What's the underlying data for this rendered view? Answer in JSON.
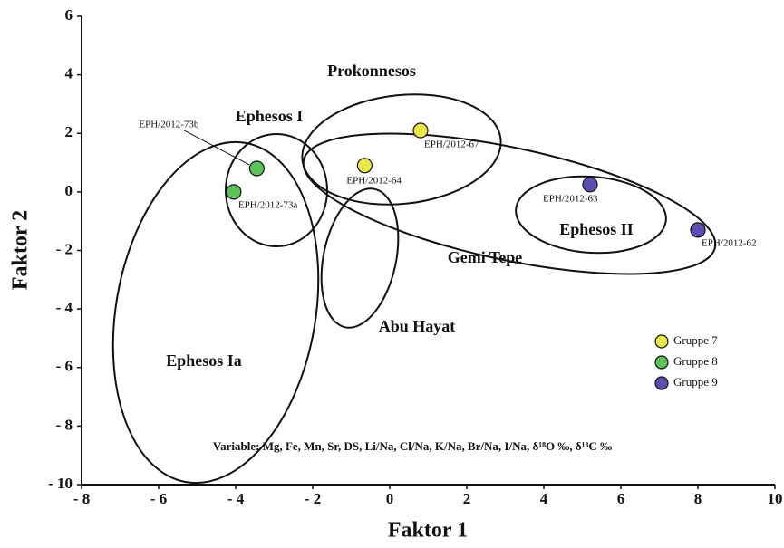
{
  "chart_data": {
    "type": "scatter",
    "xlabel": "Faktor 1",
    "ylabel": "Faktor 2",
    "xlim": [
      -8,
      10
    ],
    "ylim": [
      -10,
      6
    ],
    "xticks": [
      {
        "value": -8,
        "label": "- 8"
      },
      {
        "value": -6,
        "label": "- 6"
      },
      {
        "value": -4,
        "label": "- 4"
      },
      {
        "value": -2,
        "label": "- 2"
      },
      0,
      2,
      4,
      6,
      8,
      10
    ],
    "yticks": [
      {
        "value": -10,
        "label": "- 10"
      },
      {
        "value": -8,
        "label": "- 8"
      },
      {
        "value": -6,
        "label": "- 6"
      },
      {
        "value": -4,
        "label": "- 4"
      },
      {
        "value": -2,
        "label": "- 2"
      },
      0,
      2,
      4,
      6
    ],
    "legend": "lower right",
    "series": [
      {
        "name": "Gruppe 7",
        "color": "#e8e84a",
        "x": [
          0.8,
          -0.65
        ],
        "values": [
          2.1,
          0.9
        ],
        "labels": [
          "EPH/2012-67",
          "EPH/2012-64"
        ]
      },
      {
        "name": "Gruppe 8",
        "color": "#5cc25c",
        "x": [
          -3.45,
          -4.05
        ],
        "values": [
          0.8,
          0
        ],
        "labels": [
          "EPH/2012-73b",
          "EPH/2012-73a"
        ]
      },
      {
        "name": "Gruppe 9",
        "color": "#5a4fb0",
        "x": [
          5.2,
          8.0
        ],
        "values": [
          0.25,
          -1.3
        ],
        "labels": [
          "EPH/2012-63",
          "EPH/2012-62"
        ]
      }
    ],
    "regions": [
      "Ephesos Ia",
      "Ephesos I",
      "Prokonnesos",
      "Abu Hayat",
      "Gemi Tepe",
      "Ephesos II"
    ],
    "note": "Variable: Mg, Fe, Mn, Sr, DS, Li/Na, Cl/Na, K/Na, Br/Na, I/Na, δ¹⁸O ‰, δ¹³C ‰"
  }
}
